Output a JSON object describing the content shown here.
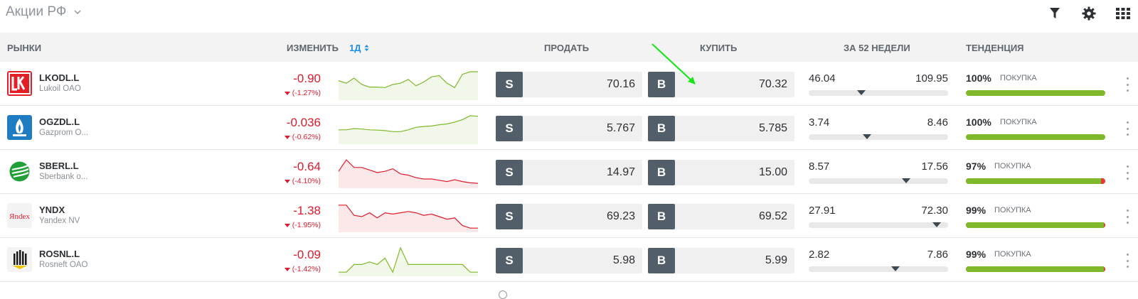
{
  "header": {
    "title": "Акции РФ",
    "tools": [
      "filter-icon",
      "gear-icon",
      "grid-icon"
    ]
  },
  "columns": {
    "markets": "РЫНКИ",
    "change": "ИЗМЕНИТЬ",
    "period": "1Д",
    "sell": "ПРОДАТЬ",
    "buy": "КУПИТЬ",
    "week52": "ЗА 52 НЕДЕЛИ",
    "trend": "ТЕНДЕНЦИЯ"
  },
  "labels": {
    "sell_tag": "S",
    "buy_tag": "B"
  },
  "colors": {
    "up": "#7fb82a",
    "down": "#e01a2b",
    "accent": "#1a8fe6",
    "tag": "#525f6b"
  },
  "rows": [
    {
      "symbol": "LKODL.L",
      "name": "Lukoil OAO",
      "change": "-0.90",
      "change_pct": "(-1.27%)",
      "sell_int": "70.",
      "sell_dec": "16",
      "buy_int": "70.",
      "buy_dec": "32",
      "w52_low": "46.04",
      "w52_high": "109.95",
      "w52_position": 0.38,
      "trend_pct": "100%",
      "trend_label": "ПОКУПКА",
      "trend_fraction": 1.0,
      "spark_color": "green",
      "spark": [
        0.35,
        0.45,
        0.25,
        0.5,
        0.6,
        0.6,
        0.62,
        0.5,
        0.45,
        0.3,
        0.55,
        0.4,
        0.2,
        0.15,
        0.45,
        0.62,
        0.1,
        0.0,
        0.0
      ]
    },
    {
      "symbol": "OGZDL.L",
      "name": "Gazprom O...",
      "change": "-0.036",
      "change_pct": "(-0.62%)",
      "sell_int": "5.",
      "sell_dec": "767",
      "buy_int": "5.",
      "buy_dec": "785",
      "w52_low": "3.74",
      "w52_high": "8.46",
      "w52_position": 0.42,
      "trend_pct": "100%",
      "trend_label": "ПОКУПКА",
      "trend_fraction": 1.0,
      "spark_color": "green",
      "spark": [
        0.55,
        0.55,
        0.5,
        0.52,
        0.55,
        0.56,
        0.58,
        0.62,
        0.62,
        0.55,
        0.45,
        0.42,
        0.4,
        0.35,
        0.32,
        0.25,
        0.15,
        0.0,
        0.02
      ]
    },
    {
      "symbol": "SBERL.L",
      "name": "Sberbank o...",
      "change": "-0.64",
      "change_pct": "(-4.10%)",
      "sell_int": "14.",
      "sell_dec": "97",
      "buy_int": "15.",
      "buy_dec": "00",
      "w52_low": "8.57",
      "w52_high": "17.56",
      "w52_position": 0.7,
      "trend_pct": "97%",
      "trend_label": "ПОКУПКА",
      "trend_fraction": 0.97,
      "spark_color": "red",
      "spark": [
        0.45,
        0.0,
        0.3,
        0.3,
        0.4,
        0.5,
        0.45,
        0.35,
        0.55,
        0.6,
        0.7,
        0.75,
        0.75,
        0.8,
        0.85,
        0.78,
        0.85,
        0.9,
        0.92
      ]
    },
    {
      "symbol": "YNDX",
      "name": "Yandex NV",
      "change": "-1.38",
      "change_pct": "(-1.95%)",
      "sell_int": "69.",
      "sell_dec": "23",
      "buy_int": "69.",
      "buy_dec": "52",
      "w52_low": "27.91",
      "w52_high": "72.30",
      "w52_position": 0.92,
      "trend_pct": "99%",
      "trend_label": "ПОКУПКА",
      "trend_fraction": 0.99,
      "spark_color": "red",
      "spark": [
        0.05,
        0.05,
        0.45,
        0.5,
        0.35,
        0.55,
        0.35,
        0.4,
        0.35,
        0.3,
        0.35,
        0.45,
        0.4,
        0.5,
        0.6,
        0.55,
        0.85,
        0.95,
        0.95
      ]
    },
    {
      "symbol": "ROSNL.L",
      "name": "Rosneft OAO",
      "change": "-0.09",
      "change_pct": "(-1.42%)",
      "sell_int": "5.",
      "sell_dec": "98",
      "buy_int": "5.",
      "buy_dec": "99",
      "w52_low": "2.82",
      "w52_high": "7.86",
      "w52_position": 0.62,
      "trend_pct": "99%",
      "trend_label": "ПОКУПКА",
      "trend_fraction": 0.99,
      "spark_color": "green",
      "spark": [
        0.95,
        0.95,
        0.65,
        0.65,
        0.55,
        0.65,
        0.4,
        0.95,
        0.0,
        0.65,
        0.65,
        0.65,
        0.65,
        0.65,
        0.65,
        0.65,
        0.65,
        0.95,
        0.95
      ]
    }
  ]
}
